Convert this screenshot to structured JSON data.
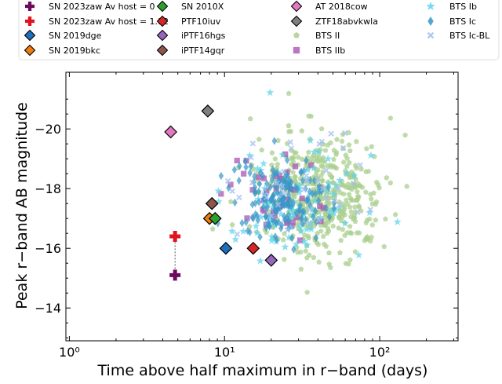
{
  "chart_data": {
    "type": "scatter",
    "xlabel": "Time above half maximum in r−band (days)",
    "ylabel": "Peak r−band AB magnitude",
    "xscale": "log",
    "xlim": [
      0.95,
      320
    ],
    "ylim": [
      -12.9,
      -21.9
    ],
    "y_inverted": true,
    "x_ticks": [
      {
        "value": 1,
        "label": "10⁰"
      },
      {
        "value": 10,
        "label": "10¹"
      },
      {
        "value": 100,
        "label": "10²"
      }
    ],
    "y_ticks": [
      -20,
      -18,
      -16,
      -14
    ],
    "legend_placement": "top, outside plot",
    "series": [
      {
        "name": "SN 2023zaw Av host = 0",
        "marker": "plus",
        "color": "#6e0a5e",
        "points": [
          [
            4.8,
            -15.1
          ]
        ]
      },
      {
        "name": "SN 2023zaw Av host = 1.12",
        "marker": "plus",
        "color": "#e0141e",
        "points": [
          [
            4.8,
            -16.4
          ]
        ]
      },
      {
        "name": "SN 2019dge",
        "marker": "diamond",
        "color": "#1f6fbf",
        "points": [
          [
            10.2,
            -16.0
          ]
        ]
      },
      {
        "name": "SN 2019bkc",
        "marker": "diamond",
        "color": "#f07c10",
        "points": [
          [
            8.0,
            -17.0
          ]
        ]
      },
      {
        "name": "SN 2010X",
        "marker": "diamond",
        "color": "#2ca02c",
        "points": [
          [
            8.7,
            -17.0
          ]
        ]
      },
      {
        "name": "PTF10iuv",
        "marker": "diamond",
        "color": "#d62728",
        "points": [
          [
            15.3,
            -16.0
          ]
        ]
      },
      {
        "name": "iPTF16hgs",
        "marker": "diamond",
        "color": "#9467bd",
        "points": [
          [
            20.0,
            -15.6
          ]
        ]
      },
      {
        "name": "iPTF14gqr",
        "marker": "diamond",
        "color": "#8c564b",
        "points": [
          [
            8.3,
            -17.5
          ]
        ]
      },
      {
        "name": "AT 2018cow",
        "marker": "diamond",
        "color": "#e377c2",
        "points": [
          [
            4.5,
            -19.9
          ]
        ]
      },
      {
        "name": "ZTF18abvkwla",
        "marker": "diamond",
        "color": "#7f7f7f",
        "points": [
          [
            7.8,
            -20.6
          ]
        ]
      }
    ],
    "populations": [
      {
        "name": "BTS II",
        "marker": "pentagon",
        "color": "#a9cf8e",
        "approx_count": 480,
        "log10_x_center": 1.62,
        "log10_x_spread": 0.2,
        "y_center": -17.8,
        "y_spread": 1.0
      },
      {
        "name": "BTS IIb",
        "marker": "square",
        "color": "#b05fb8",
        "approx_count": 40,
        "log10_x_center": 1.38,
        "log10_x_spread": 0.18,
        "y_center": -17.7,
        "y_spread": 0.6
      },
      {
        "name": "BTS Ib",
        "marker": "star",
        "color": "#5fd4ec",
        "approx_count": 90,
        "log10_x_center": 1.42,
        "log10_x_spread": 0.22,
        "y_center": -17.6,
        "y_spread": 0.9
      },
      {
        "name": "BTS Ic",
        "marker": "thin-diamond",
        "color": "#3896c7",
        "approx_count": 170,
        "log10_x_center": 1.35,
        "log10_x_spread": 0.15,
        "y_center": -17.6,
        "y_spread": 0.7
      },
      {
        "name": "BTS Ic-BL",
        "marker": "x",
        "color": "#a3bff0",
        "approx_count": 40,
        "log10_x_center": 1.45,
        "log10_x_spread": 0.22,
        "y_center": -18.2,
        "y_spread": 0.9
      }
    ]
  }
}
